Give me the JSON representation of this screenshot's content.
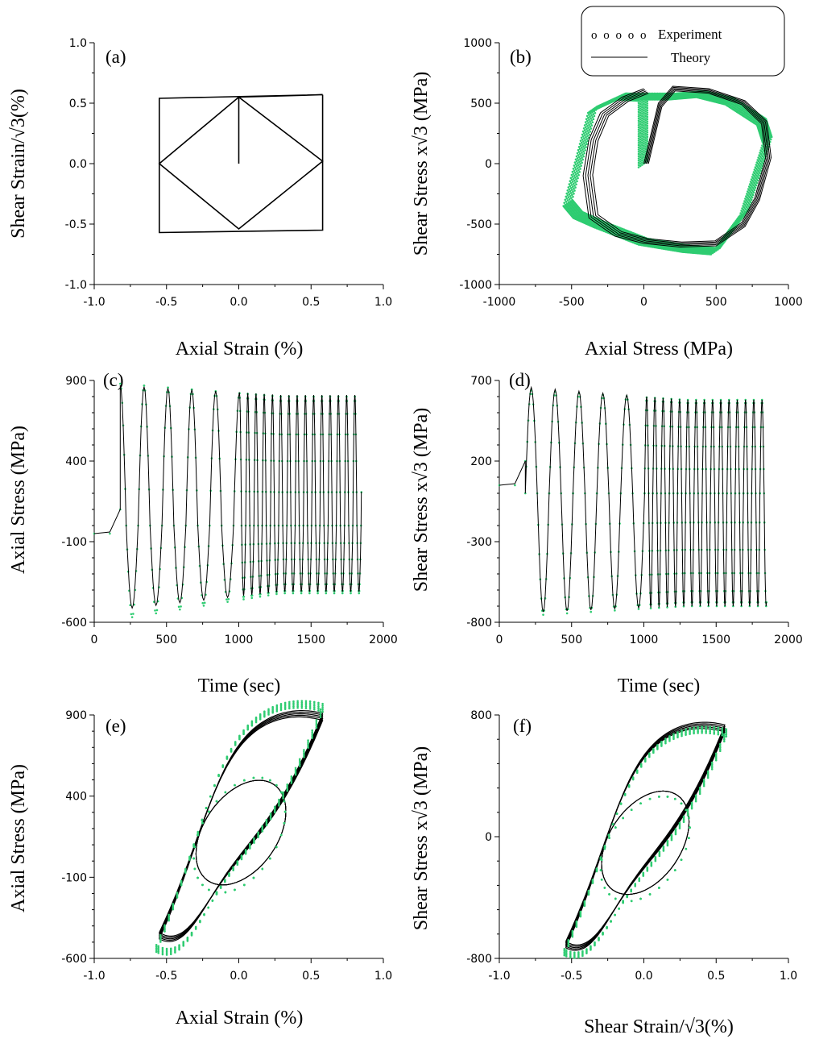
{
  "legend": {
    "experiment_symbol": "o o o o o",
    "experiment_label": "Experiment",
    "theory_label": "Theory"
  },
  "colors": {
    "experiment": "#2ecc71",
    "theory": "#000000"
  },
  "chart_data": [
    {
      "id": "a",
      "type": "line",
      "panel_label": "(a)",
      "xlabel": "Axial Strain (%)",
      "ylabel": "Shear Strain/√3(%)",
      "xlim": [
        -1.0,
        1.0
      ],
      "ylim": [
        -1.0,
        1.0
      ],
      "xticks": [
        "-1.0",
        "-0.5",
        "0.0",
        "0.5",
        "1.0"
      ],
      "yticks": [
        "-1.0",
        "-0.5",
        "0.0",
        "0.5",
        "1.0"
      ],
      "series": [
        {
          "role": "theory",
          "x": [
            0,
            0,
            -0.55,
            0,
            0.58,
            0,
            0.58,
            -0.55,
            -0.55,
            0.58,
            0.58
          ],
          "y": [
            0,
            0.55,
            0,
            -0.54,
            0.02,
            0.55,
            0.57,
            0.54,
            -0.57,
            -0.55,
            0.57
          ]
        }
      ]
    },
    {
      "id": "b",
      "type": "line",
      "panel_label": "(b)",
      "xlabel": "Axial Stress (MPa)",
      "ylabel": "Shear Stress x√3 (MPa)",
      "xlim": [
        -1000,
        1000
      ],
      "ylim": [
        -1000,
        1000
      ],
      "xticks": [
        "-1000",
        "-500",
        "0",
        "500",
        "1000"
      ],
      "yticks": [
        "-1000",
        "-500",
        "0",
        "500",
        "1000"
      ],
      "series": [
        {
          "role": "experiment",
          "x": [
            0,
            0,
            -150,
            -350,
            -520,
            -450,
            -300,
            0,
            300,
            500,
            700,
            860,
            820,
            600,
            400,
            200,
            -150
          ],
          "y": [
            0,
            550,
            560,
            450,
            -320,
            -420,
            -500,
            -640,
            -700,
            -720,
            -400,
            200,
            350,
            520,
            580,
            560,
            560
          ]
        },
        {
          "role": "theory",
          "x": [
            0,
            100,
            200,
            450,
            700,
            850,
            880,
            800,
            700,
            500,
            250,
            0,
            -200,
            -380,
            -420,
            -380,
            -300,
            -150,
            0
          ],
          "y": [
            0,
            500,
            640,
            620,
            520,
            350,
            50,
            -300,
            -520,
            -680,
            -690,
            -660,
            -600,
            -450,
            -100,
            200,
            420,
            550,
            620
          ]
        }
      ]
    },
    {
      "id": "c",
      "type": "line",
      "panel_label": "(c)",
      "xlabel": "Time (sec)",
      "ylabel": "Axial Stress (MPa)",
      "xlim": [
        0,
        2000
      ],
      "ylim": [
        -600,
        900
      ],
      "xticks": [
        "0",
        "500",
        "1000",
        "1500",
        "2000"
      ],
      "yticks": [
        "-600",
        "-100",
        "400",
        "900"
      ],
      "series": [
        {
          "role": "experiment",
          "t": [
            0,
            180,
            1000,
            1850
          ],
          "amp_start": 880,
          "amp_end": 800,
          "min_start": -580,
          "min_end": -420
        },
        {
          "role": "theory",
          "t": [
            0,
            180,
            1000,
            1850
          ],
          "amp_start": 870,
          "amp_end": 810,
          "min_start": -520,
          "min_end": -410
        }
      ]
    },
    {
      "id": "d",
      "type": "line",
      "panel_label": "(d)",
      "xlabel": "Time (sec)",
      "ylabel": "Shear Stress x√3 (MPa)",
      "xlim": [
        0,
        2000
      ],
      "ylim": [
        -800,
        700
      ],
      "xticks": [
        "0",
        "500",
        "1000",
        "1500",
        "2000"
      ],
      "yticks": [
        "-800",
        "-300",
        "200",
        "700"
      ],
      "series": [
        {
          "role": "experiment",
          "t": [
            0,
            180,
            1000,
            1850
          ],
          "amp_start": 640,
          "amp_end": 580,
          "min_start": -760,
          "min_end": -700
        },
        {
          "role": "theory",
          "t": [
            0,
            180,
            1000,
            1850
          ],
          "amp_start": 660,
          "amp_end": 580,
          "min_start": -740,
          "min_end": -700
        }
      ]
    },
    {
      "id": "e",
      "type": "line",
      "panel_label": "(e)",
      "xlabel": "Axial Strain (%)",
      "ylabel": "Axial Stress (MPa)",
      "xlim": [
        -1.0,
        1.0
      ],
      "ylim": [
        -600,
        900
      ],
      "xticks": [
        "-1.0",
        "-0.5",
        "0.0",
        "0.5",
        "1.0"
      ],
      "yticks": [
        "-600",
        "-100",
        "400",
        "900"
      ],
      "series": [
        {
          "role": "theory",
          "loop_xmin": -0.55,
          "loop_xmax": 0.58,
          "loop_ymin": -480,
          "loop_ymax": 830
        },
        {
          "role": "experiment",
          "loop_xmin": -0.57,
          "loop_xmax": 0.58,
          "loop_ymin": -560,
          "loop_ymax": 880
        }
      ]
    },
    {
      "id": "f",
      "type": "line",
      "panel_label": "(f)",
      "xlabel": "Shear Strain/√3(%)",
      "ylabel": "Shear Stress x√3 (MPa)",
      "xlim": [
        -1.0,
        1.0
      ],
      "ylim": [
        -800,
        800
      ],
      "xticks": [
        "-1.0",
        "-0.5",
        "0.0",
        "0.5",
        "1.0"
      ],
      "yticks": [
        "-800",
        "0",
        "800"
      ],
      "series": [
        {
          "role": "theory",
          "loop_xmin": -0.54,
          "loop_xmax": 0.56,
          "loop_ymin": -730,
          "loop_ymax": 650
        },
        {
          "role": "experiment",
          "loop_xmin": -0.55,
          "loop_xmax": 0.57,
          "loop_ymin": -780,
          "loop_ymax": 620
        }
      ]
    }
  ]
}
